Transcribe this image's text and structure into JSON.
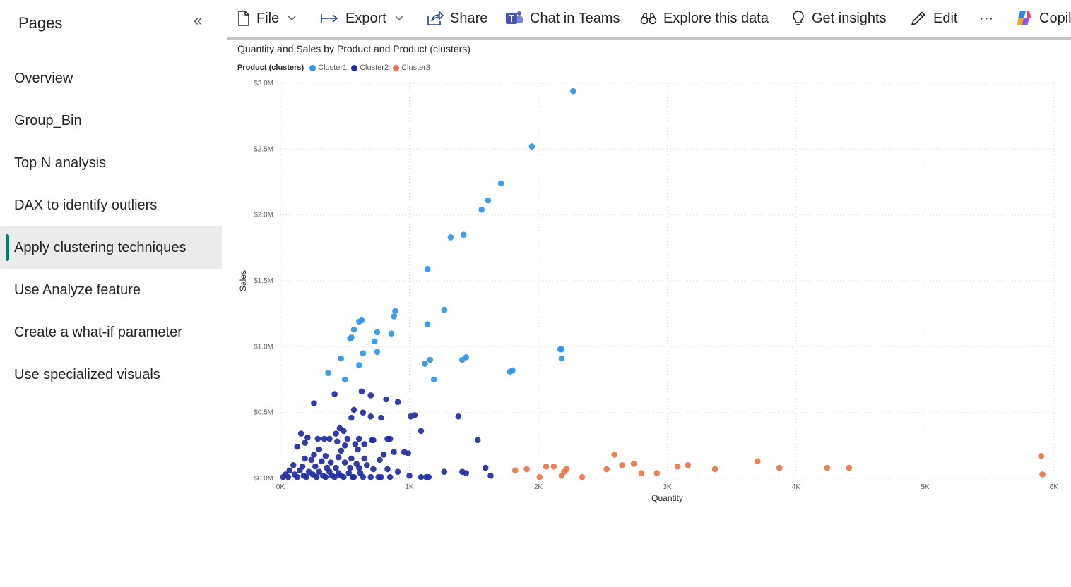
{
  "sidebar": {
    "header": "Pages",
    "collapse_icon": "double-chevron-left-icon",
    "items": [
      {
        "label": "Overview",
        "active": false
      },
      {
        "label": "Group_Bin",
        "active": false
      },
      {
        "label": "Top N analysis",
        "active": false
      },
      {
        "label": "DAX to identify outliers",
        "active": false
      },
      {
        "label": "Apply clustering techniques",
        "active": true
      },
      {
        "label": "Use Analyze feature",
        "active": false
      },
      {
        "label": "Create a what-if parameter",
        "active": false
      },
      {
        "label": "Use specialized visuals",
        "active": false
      }
    ]
  },
  "toolbar": {
    "file": "File",
    "export": "Export",
    "share": "Share",
    "chat_in_teams": "Chat in Teams",
    "explore": "Explore this data",
    "insights": "Get insights",
    "edit": "Edit",
    "more": "···",
    "copilot": "Copilot"
  },
  "colors": {
    "cluster1": "#2f95e8",
    "cluster2": "#1f2b9e",
    "cluster3": "#e6764a",
    "active_indicator": "#117865"
  },
  "chart_data": {
    "type": "scatter",
    "title": "Quantity and Sales by Product and Product (clusters)",
    "legend_title": "Product (clusters)",
    "legend_placement": "top-left",
    "xlabel": "Quantity",
    "ylabel": "Sales",
    "xlim": [
      0,
      6000
    ],
    "ylim": [
      0,
      3000000
    ],
    "x_ticks": [
      "0K",
      "1K",
      "2K",
      "3K",
      "4K",
      "5K",
      "6K"
    ],
    "y_ticks": [
      "$0.0M",
      "$0.5M",
      "$1.0M",
      "$1.5M",
      "$2.0M",
      "$2.5M",
      "$3.0M"
    ],
    "grid": true,
    "series": [
      {
        "name": "Cluster1",
        "points": [
          [
            2270,
            2940000
          ],
          [
            1950,
            2520000
          ],
          [
            1710,
            2240000
          ],
          [
            1610,
            2110000
          ],
          [
            1560,
            2040000
          ],
          [
            1420,
            1850000
          ],
          [
            1320,
            1830000
          ],
          [
            1140,
            1590000
          ],
          [
            1270,
            1280000
          ],
          [
            890,
            1270000
          ],
          [
            880,
            1230000
          ],
          [
            630,
            1200000
          ],
          [
            610,
            1190000
          ],
          [
            1140,
            1170000
          ],
          [
            570,
            1130000
          ],
          [
            750,
            1110000
          ],
          [
            860,
            1100000
          ],
          [
            550,
            1070000
          ],
          [
            540,
            1060000
          ],
          [
            730,
            1040000
          ],
          [
            2180,
            980000
          ],
          [
            2170,
            980000
          ],
          [
            640,
            950000
          ],
          [
            750,
            960000
          ],
          [
            1160,
            900000
          ],
          [
            1440,
            920000
          ],
          [
            1410,
            900000
          ],
          [
            470,
            910000
          ],
          [
            1120,
            870000
          ],
          [
            610,
            860000
          ],
          [
            1800,
            820000
          ],
          [
            1780,
            810000
          ],
          [
            370,
            800000
          ],
          [
            500,
            750000
          ],
          [
            1190,
            750000
          ],
          [
            2180,
            910000
          ]
        ]
      },
      {
        "name": "Cluster2",
        "points": [
          [
            260,
            570000
          ],
          [
            420,
            640000
          ],
          [
            630,
            660000
          ],
          [
            700,
            630000
          ],
          [
            820,
            600000
          ],
          [
            910,
            580000
          ],
          [
            570,
            520000
          ],
          [
            640,
            500000
          ],
          [
            700,
            470000
          ],
          [
            1040,
            480000
          ],
          [
            1010,
            470000
          ],
          [
            1380,
            470000
          ],
          [
            780,
            460000
          ],
          [
            460,
            380000
          ],
          [
            550,
            460000
          ],
          [
            490,
            360000
          ],
          [
            1090,
            360000
          ],
          [
            430,
            340000
          ],
          [
            160,
            340000
          ],
          [
            210,
            310000
          ],
          [
            290,
            300000
          ],
          [
            340,
            300000
          ],
          [
            380,
            300000
          ],
          [
            520,
            300000
          ],
          [
            610,
            300000
          ],
          [
            710,
            290000
          ],
          [
            720,
            290000
          ],
          [
            830,
            300000
          ],
          [
            850,
            300000
          ],
          [
            1530,
            290000
          ],
          [
            190,
            270000
          ],
          [
            440,
            280000
          ],
          [
            500,
            250000
          ],
          [
            580,
            260000
          ],
          [
            650,
            260000
          ],
          [
            130,
            240000
          ],
          [
            300,
            220000
          ],
          [
            470,
            210000
          ],
          [
            600,
            220000
          ],
          [
            880,
            200000
          ],
          [
            960,
            200000
          ],
          [
            990,
            190000
          ],
          [
            800,
            180000
          ],
          [
            260,
            180000
          ],
          [
            350,
            170000
          ],
          [
            450,
            160000
          ],
          [
            550,
            150000
          ],
          [
            650,
            150000
          ],
          [
            770,
            140000
          ],
          [
            190,
            150000
          ],
          [
            240,
            140000
          ],
          [
            320,
            130000
          ],
          [
            390,
            120000
          ],
          [
            500,
            120000
          ],
          [
            590,
            110000
          ],
          [
            670,
            100000
          ],
          [
            100,
            100000
          ],
          [
            170,
            90000
          ],
          [
            270,
            90000
          ],
          [
            360,
            80000
          ],
          [
            430,
            80000
          ],
          [
            540,
            80000
          ],
          [
            610,
            80000
          ],
          [
            720,
            70000
          ],
          [
            830,
            70000
          ],
          [
            70,
            60000
          ],
          [
            150,
            60000
          ],
          [
            220,
            50000
          ],
          [
            300,
            50000
          ],
          [
            380,
            50000
          ],
          [
            450,
            40000
          ],
          [
            530,
            40000
          ],
          [
            620,
            40000
          ],
          [
            910,
            50000
          ],
          [
            1270,
            50000
          ],
          [
            1410,
            50000
          ],
          [
            1440,
            40000
          ],
          [
            1590,
            80000
          ],
          [
            40,
            30000
          ],
          [
            110,
            30000
          ],
          [
            180,
            20000
          ],
          [
            250,
            30000
          ],
          [
            330,
            20000
          ],
          [
            400,
            20000
          ],
          [
            470,
            20000
          ],
          [
            560,
            10000
          ],
          [
            640,
            10000
          ],
          [
            760,
            10000
          ],
          [
            780,
            10000
          ],
          [
            1000,
            20000
          ],
          [
            1090,
            10000
          ],
          [
            1130,
            10000
          ],
          [
            1150,
            10000
          ],
          [
            1630,
            20000
          ],
          [
            20,
            10000
          ],
          [
            60,
            10000
          ],
          [
            130,
            10000
          ],
          [
            200,
            10000
          ],
          [
            280,
            10000
          ],
          [
            350,
            10000
          ],
          [
            420,
            10000
          ],
          [
            490,
            10000
          ],
          [
            570,
            10000
          ],
          [
            700,
            10000
          ],
          [
            850,
            10000
          ]
        ]
      },
      {
        "name": "Cluster3",
        "points": [
          [
            2590,
            180000
          ],
          [
            2530,
            70000
          ],
          [
            2650,
            100000
          ],
          [
            2740,
            110000
          ],
          [
            2800,
            40000
          ],
          [
            2920,
            40000
          ],
          [
            3080,
            90000
          ],
          [
            3160,
            100000
          ],
          [
            3370,
            70000
          ],
          [
            3700,
            130000
          ],
          [
            3870,
            80000
          ],
          [
            4240,
            80000
          ],
          [
            4410,
            80000
          ],
          [
            5900,
            170000
          ],
          [
            5910,
            30000
          ],
          [
            1820,
            60000
          ],
          [
            1910,
            70000
          ],
          [
            2010,
            10000
          ],
          [
            2060,
            90000
          ],
          [
            2120,
            90000
          ],
          [
            2180,
            20000
          ],
          [
            2200,
            50000
          ],
          [
            2220,
            70000
          ],
          [
            2340,
            10000
          ]
        ]
      }
    ]
  }
}
